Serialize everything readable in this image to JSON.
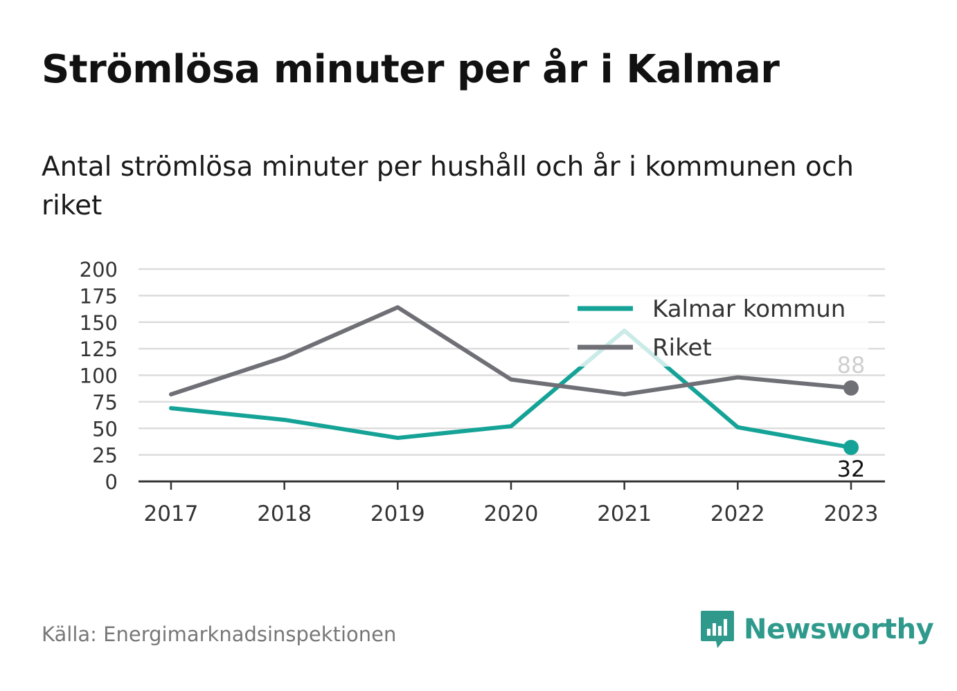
{
  "title": "Strömlösa minuter per år i Kalmar",
  "subtitle": "Antal strömlösa minuter per hushåll och år i kommunen och riket",
  "source": "Källa: Energimarknadsinspektionen",
  "brand": {
    "name": "Newsworthy",
    "icon": "newsworthy-logo-icon",
    "color": "#2f9a8c"
  },
  "chart_data": {
    "type": "line",
    "x": [
      "2017",
      "2018",
      "2019",
      "2020",
      "2021",
      "2022",
      "2023"
    ],
    "ylim": [
      0,
      200
    ],
    "yticks": [
      "0",
      "25",
      "50",
      "75",
      "100",
      "125",
      "150",
      "175",
      "200"
    ],
    "grid": true,
    "legend": "top-right",
    "series": [
      {
        "name": "Kalmar kommun",
        "color": "#14a396",
        "values": [
          69,
          58,
          41,
          52,
          142,
          51,
          32
        ],
        "end_label": "32"
      },
      {
        "name": "Riket",
        "color": "#6f6f76",
        "values": [
          82,
          117,
          164,
          96,
          82,
          98,
          88
        ],
        "end_label": "88"
      }
    ]
  }
}
